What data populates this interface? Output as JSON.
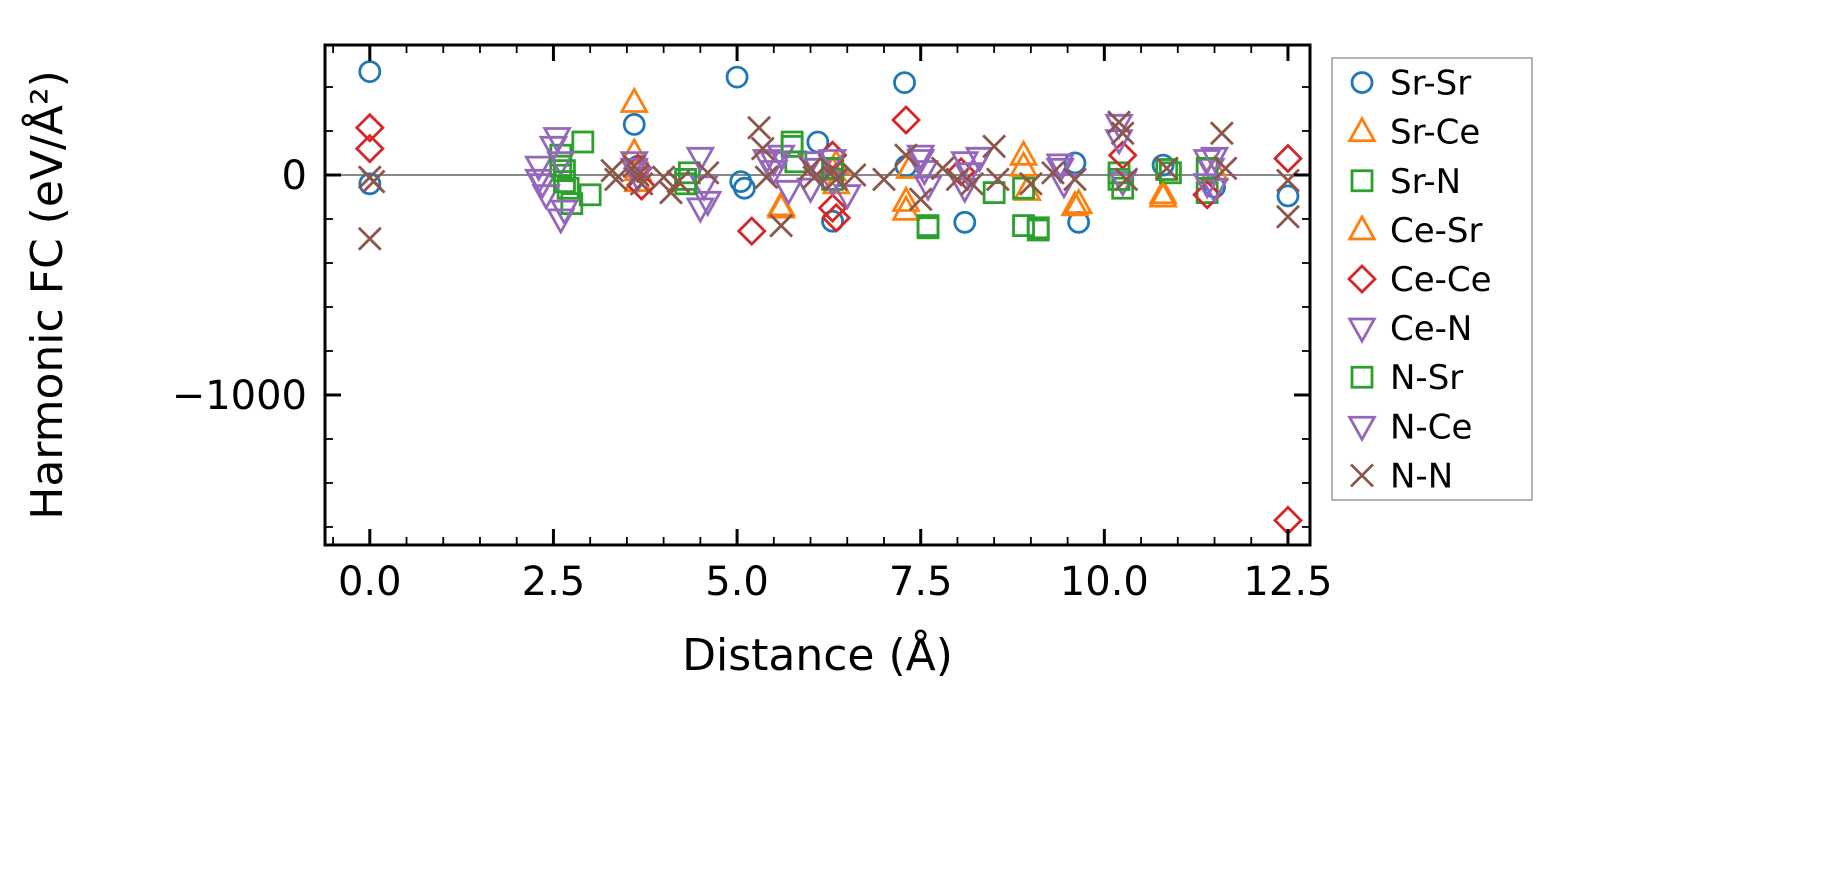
{
  "chart_data": {
    "type": "scatter",
    "title": "",
    "xlabel": "Distance (Å)",
    "ylabel": "Harmonic FC (eV/Å²)",
    "xlim": [
      -0.61,
      12.8
    ],
    "ylim": [
      -1682,
      591
    ],
    "x_ticks": [
      0.0,
      2.5,
      5.0,
      7.5,
      10.0,
      12.5
    ],
    "x_tick_labels": [
      "0.0",
      "2.5",
      "5.0",
      "7.5",
      "10.0",
      "12.5"
    ],
    "y_ticks": [
      0,
      -1000
    ],
    "y_tick_labels": [
      "0",
      "−1000"
    ],
    "x_minor_step": 0.5,
    "y_minor_step": 200,
    "grid": false,
    "zero_line": {
      "y": 0,
      "color": "#888888"
    },
    "legend_position": "outside-right",
    "axis_color": "#000000",
    "series": [
      {
        "name": "Sr-Sr",
        "marker": "circle",
        "color": "#1f77b4",
        "points": [
          [
            0.0,
            470
          ],
          [
            0.0,
            -40
          ],
          [
            3.6,
            230
          ],
          [
            3.65,
            40
          ],
          [
            5.0,
            445
          ],
          [
            5.05,
            -30
          ],
          [
            5.1,
            -60
          ],
          [
            6.1,
            150
          ],
          [
            6.3,
            30
          ],
          [
            6.3,
            -210
          ],
          [
            7.28,
            420
          ],
          [
            7.3,
            40
          ],
          [
            8.1,
            -215
          ],
          [
            9.6,
            55
          ],
          [
            9.65,
            -215
          ],
          [
            10.8,
            45
          ],
          [
            11.5,
            -55
          ],
          [
            12.5,
            -95
          ]
        ]
      },
      {
        "name": "Sr-Ce",
        "marker": "triangle-up",
        "color": "#ff7f0e",
        "points": [
          [
            3.6,
            330
          ],
          [
            3.65,
            20
          ],
          [
            5.6,
            -140
          ],
          [
            6.3,
            20
          ],
          [
            6.35,
            -40
          ],
          [
            7.3,
            -120
          ],
          [
            7.35,
            30
          ],
          [
            8.9,
            90
          ],
          [
            8.95,
            -70
          ],
          [
            9.65,
            -130
          ],
          [
            10.8,
            -85
          ],
          [
            11.5,
            20
          ]
        ]
      },
      {
        "name": "Sr-N",
        "marker": "square",
        "color": "#2ca02c",
        "points": [
          [
            2.6,
            90
          ],
          [
            2.65,
            20
          ],
          [
            2.7,
            -60
          ],
          [
            2.75,
            -130
          ],
          [
            2.9,
            150
          ],
          [
            3.0,
            -90
          ],
          [
            4.3,
            -20
          ],
          [
            4.35,
            10
          ],
          [
            5.75,
            130
          ],
          [
            5.8,
            60
          ],
          [
            6.3,
            -20
          ],
          [
            7.6,
            -240
          ],
          [
            8.5,
            -80
          ],
          [
            8.9,
            -230
          ],
          [
            9.1,
            -250
          ],
          [
            10.2,
            10
          ],
          [
            10.25,
            -60
          ],
          [
            10.9,
            10
          ],
          [
            11.4,
            -80
          ]
        ]
      },
      {
        "name": "Ce-Sr",
        "marker": "triangle-up",
        "color": "#ff7f0e",
        "points": [
          [
            3.6,
            100
          ],
          [
            3.65,
            -30
          ],
          [
            5.6,
            -150
          ],
          [
            6.35,
            50
          ],
          [
            7.3,
            -160
          ],
          [
            8.9,
            40
          ],
          [
            9.6,
            -140
          ],
          [
            10.8,
            -100
          ]
        ]
      },
      {
        "name": "Ce-Ce",
        "marker": "diamond",
        "color": "#d62728",
        "points": [
          [
            0.0,
            215
          ],
          [
            0.0,
            120
          ],
          [
            3.65,
            30
          ],
          [
            3.7,
            -50
          ],
          [
            5.2,
            -255
          ],
          [
            6.3,
            90
          ],
          [
            6.3,
            -150
          ],
          [
            6.35,
            -195
          ],
          [
            7.3,
            250
          ],
          [
            8.05,
            15
          ],
          [
            10.25,
            90
          ],
          [
            11.4,
            -90
          ],
          [
            12.5,
            75
          ],
          [
            12.5,
            -1570
          ]
        ]
      },
      {
        "name": "Ce-N",
        "marker": "triangle-down",
        "color": "#9467bd",
        "points": [
          [
            2.3,
            40
          ],
          [
            2.35,
            -40
          ],
          [
            2.4,
            -90
          ],
          [
            2.55,
            170
          ],
          [
            2.6,
            60
          ],
          [
            2.65,
            -160
          ],
          [
            3.6,
            60
          ],
          [
            3.65,
            -10
          ],
          [
            4.5,
            80
          ],
          [
            4.55,
            -50
          ],
          [
            4.6,
            -120
          ],
          [
            5.4,
            70
          ],
          [
            5.5,
            20
          ],
          [
            5.6,
            90
          ],
          [
            5.7,
            -70
          ],
          [
            6.0,
            60
          ],
          [
            6.1,
            30
          ],
          [
            6.3,
            -30
          ],
          [
            6.5,
            -90
          ],
          [
            7.5,
            70
          ],
          [
            7.55,
            20
          ],
          [
            7.6,
            -50
          ],
          [
            8.1,
            60
          ],
          [
            8.15,
            10
          ],
          [
            8.3,
            80
          ],
          [
            9.4,
            50
          ],
          [
            9.45,
            -40
          ],
          [
            10.2,
            230
          ],
          [
            10.25,
            -30
          ],
          [
            11.4,
            70
          ],
          [
            11.45,
            30
          ],
          [
            11.5,
            -60
          ]
        ]
      },
      {
        "name": "N-Sr",
        "marker": "square",
        "color": "#2ca02c",
        "points": [
          [
            2.6,
            40
          ],
          [
            2.65,
            -30
          ],
          [
            4.3,
            -40
          ],
          [
            5.75,
            150
          ],
          [
            6.3,
            30
          ],
          [
            7.6,
            -230
          ],
          [
            8.9,
            -60
          ],
          [
            9.1,
            -240
          ],
          [
            10.2,
            -20
          ],
          [
            10.85,
            25
          ],
          [
            11.4,
            30
          ]
        ]
      },
      {
        "name": "N-Ce",
        "marker": "triangle-down",
        "color": "#9467bd",
        "points": [
          [
            2.3,
            -20
          ],
          [
            2.5,
            130
          ],
          [
            2.6,
            -200
          ],
          [
            3.6,
            30
          ],
          [
            4.5,
            -150
          ],
          [
            5.5,
            60
          ],
          [
            6.0,
            -60
          ],
          [
            6.3,
            70
          ],
          [
            7.5,
            90
          ],
          [
            8.1,
            -60
          ],
          [
            9.4,
            30
          ],
          [
            10.2,
            160
          ],
          [
            11.4,
            -40
          ],
          [
            11.5,
            80
          ]
        ]
      },
      {
        "name": "N-N",
        "marker": "x",
        "color": "#8c564b",
        "points": [
          [
            0.0,
            -10
          ],
          [
            0.05,
            -30
          ],
          [
            0.0,
            -290
          ],
          [
            3.3,
            20
          ],
          [
            3.35,
            -20
          ],
          [
            3.6,
            40
          ],
          [
            3.65,
            0
          ],
          [
            3.7,
            -40
          ],
          [
            4.0,
            -10
          ],
          [
            4.1,
            -80
          ],
          [
            4.2,
            -30
          ],
          [
            4.6,
            10
          ],
          [
            5.3,
            215
          ],
          [
            5.35,
            120
          ],
          [
            5.4,
            -10
          ],
          [
            5.6,
            -230
          ],
          [
            6.0,
            30
          ],
          [
            6.05,
            -10
          ],
          [
            6.3,
            20
          ],
          [
            6.35,
            -20
          ],
          [
            6.6,
            0
          ],
          [
            7.0,
            -20
          ],
          [
            7.3,
            90
          ],
          [
            7.5,
            -110
          ],
          [
            7.8,
            30
          ],
          [
            8.0,
            -20
          ],
          [
            8.2,
            -40
          ],
          [
            8.5,
            130
          ],
          [
            8.55,
            -20
          ],
          [
            9.0,
            -40
          ],
          [
            9.3,
            10
          ],
          [
            9.6,
            -20
          ],
          [
            10.2,
            240
          ],
          [
            10.25,
            190
          ],
          [
            10.3,
            -20
          ],
          [
            10.85,
            30
          ],
          [
            11.6,
            190
          ],
          [
            11.65,
            30
          ],
          [
            12.5,
            -25
          ],
          [
            12.5,
            -190
          ]
        ]
      }
    ]
  }
}
